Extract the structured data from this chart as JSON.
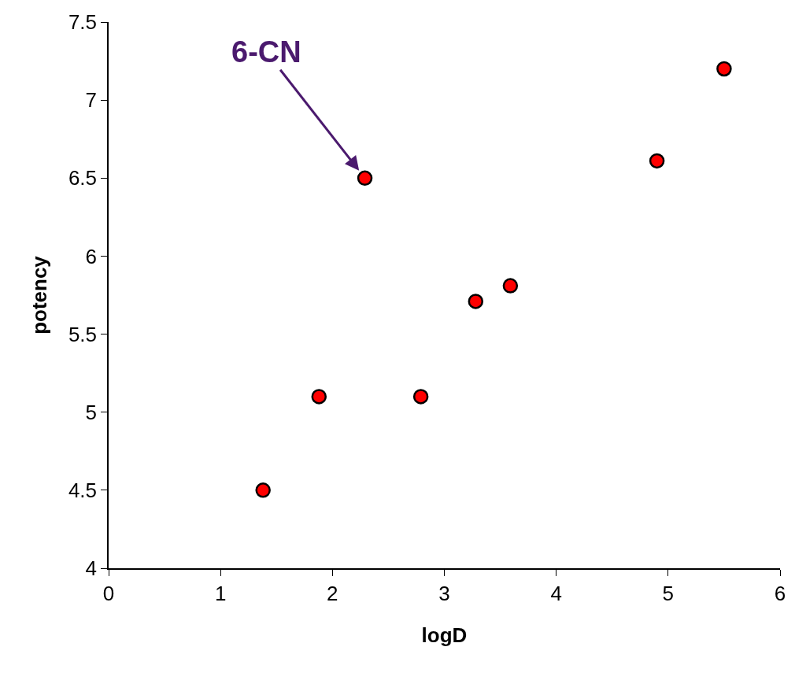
{
  "chart_data": {
    "type": "scatter",
    "xlabel": "logD",
    "ylabel": "potency",
    "x": [
      1.38,
      1.88,
      2.29,
      2.79,
      3.28,
      3.59,
      4.9,
      5.5
    ],
    "values": [
      4.5,
      5.1,
      6.5,
      5.1,
      5.71,
      5.81,
      6.61,
      7.2
    ],
    "color": "#ff0000",
    "marker": "circle",
    "xlim": [
      0,
      6
    ],
    "xticks": [
      0,
      1,
      2,
      3,
      4,
      5,
      6
    ],
    "ylim": [
      4,
      7.5
    ],
    "yticks": [
      4,
      4.5,
      5,
      5.5,
      6,
      6.5,
      7,
      7.5
    ],
    "grid": false,
    "annotations": [
      {
        "text": "6-CN",
        "x": 2.29,
        "y": 6.5
      }
    ]
  }
}
